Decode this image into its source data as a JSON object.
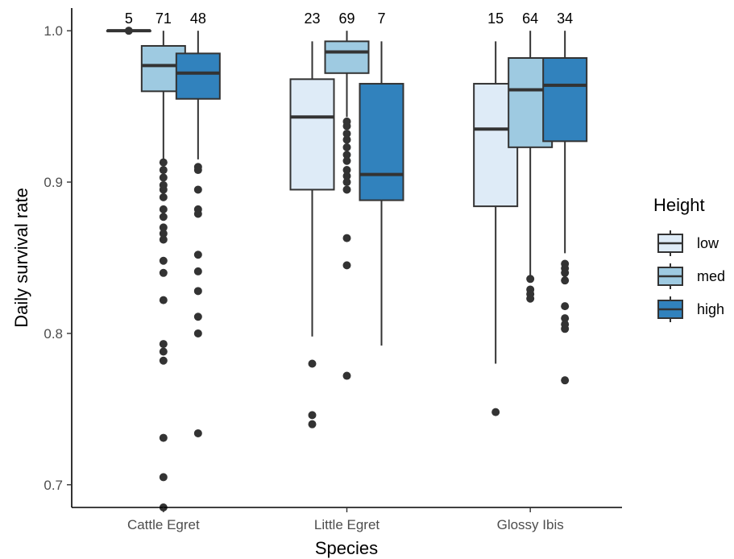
{
  "chart_data": {
    "type": "box",
    "title": "",
    "xlabel": "Species",
    "ylabel": "Daily survival rate",
    "ylim": [
      0.685,
      1.015
    ],
    "yticks": [
      0.7,
      0.8,
      0.9,
      1.0
    ],
    "ytick_labels": [
      "0.7",
      "0.8",
      "0.9",
      "1.0"
    ],
    "grid": false,
    "legend": {
      "title": "Height",
      "position": "right"
    },
    "categories": [
      "Cattle Egret",
      "Little Egret",
      "Glossy Ibis"
    ],
    "series": [
      {
        "name": "low",
        "color": "#deebf7"
      },
      {
        "name": "med",
        "color": "#9ecae1"
      },
      {
        "name": "high",
        "color": "#3182bd"
      }
    ],
    "boxes": [
      {
        "category": "Cattle Egret",
        "group": "low",
        "n": "5",
        "min": 1.0,
        "q1": 1.0,
        "median": 1.0,
        "q3": 1.0,
        "max": 1.0,
        "outliers": [
          1.0
        ]
      },
      {
        "category": "Cattle Egret",
        "group": "med",
        "n": "71",
        "min": 0.915,
        "q1": 0.96,
        "median": 0.977,
        "q3": 0.99,
        "max": 1.0,
        "outliers": [
          0.913,
          0.908,
          0.903,
          0.898,
          0.895,
          0.89,
          0.882,
          0.877,
          0.87,
          0.866,
          0.862,
          0.848,
          0.84,
          0.822,
          0.793,
          0.788,
          0.782,
          0.731,
          0.705,
          0.685
        ]
      },
      {
        "category": "Cattle Egret",
        "group": "high",
        "n": "48",
        "min": 0.915,
        "q1": 0.955,
        "median": 0.972,
        "q3": 0.985,
        "max": 1.0,
        "outliers": [
          0.91,
          0.908,
          0.895,
          0.882,
          0.879,
          0.852,
          0.841,
          0.828,
          0.811,
          0.8,
          0.734
        ]
      },
      {
        "category": "Little Egret",
        "group": "low",
        "n": "23",
        "min": 0.798,
        "q1": 0.895,
        "median": 0.943,
        "q3": 0.968,
        "max": 0.993,
        "outliers": [
          0.78,
          0.746,
          0.74
        ]
      },
      {
        "category": "Little Egret",
        "group": "med",
        "n": "69",
        "min": 0.943,
        "q1": 0.972,
        "median": 0.986,
        "q3": 0.993,
        "max": 1.0,
        "outliers": [
          0.94,
          0.937,
          0.932,
          0.928,
          0.923,
          0.918,
          0.914,
          0.908,
          0.904,
          0.9,
          0.895,
          0.863,
          0.845,
          0.772
        ]
      },
      {
        "category": "Little Egret",
        "group": "high",
        "n": "7",
        "min": 0.792,
        "q1": 0.888,
        "median": 0.905,
        "q3": 0.965,
        "max": 0.993,
        "outliers": []
      },
      {
        "category": "Glossy Ibis",
        "group": "low",
        "n": "15",
        "min": 0.78,
        "q1": 0.884,
        "median": 0.935,
        "q3": 0.965,
        "max": 0.993,
        "outliers": [
          0.748
        ]
      },
      {
        "category": "Glossy Ibis",
        "group": "med",
        "n": "64",
        "min": 0.838,
        "q1": 0.923,
        "median": 0.961,
        "q3": 0.982,
        "max": 1.0,
        "outliers": [
          0.836,
          0.829,
          0.826,
          0.823
        ]
      },
      {
        "category": "Glossy Ibis",
        "group": "high",
        "n": "34",
        "min": 0.853,
        "q1": 0.927,
        "median": 0.964,
        "q3": 0.982,
        "max": 1.0,
        "outliers": [
          0.846,
          0.843,
          0.84,
          0.835,
          0.818,
          0.81,
          0.806,
          0.803,
          0.769
        ]
      }
    ]
  }
}
